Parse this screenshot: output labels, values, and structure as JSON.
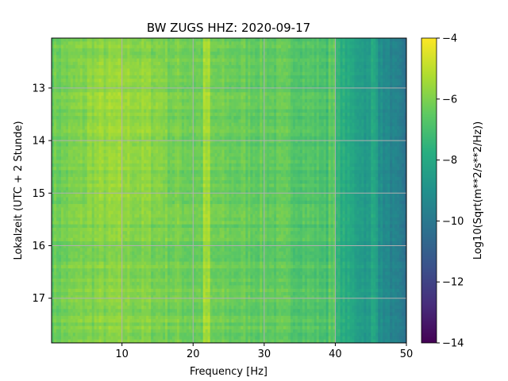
{
  "chart_data": {
    "type": "heatmap",
    "title": "BW ZUGS  HHZ: 2020-09-17",
    "xlabel": "Frequency [Hz]",
    "ylabel": "Lokalzeit (UTC + 2 Stunde)",
    "xlim": [
      0.1,
      50
    ],
    "ylim": [
      12.05,
      17.85
    ],
    "y_inverted": true,
    "grid": true,
    "xticks": [
      10,
      20,
      30,
      40,
      50
    ],
    "yticks": [
      13,
      14,
      15,
      16,
      17
    ],
    "colorbar": {
      "label": "Log10(Sqrt(m**2/s**2/Hz))",
      "colormap": "viridis",
      "vmin": -14,
      "vmax": -4,
      "ticks": [
        -4,
        -6,
        -8,
        -10,
        -12,
        -14
      ]
    },
    "approx_values": {
      "freq_profile_hz": [
        0,
        5,
        10,
        15,
        20,
        25,
        30,
        35,
        38,
        40,
        42,
        45,
        48,
        50
      ],
      "log10_psd_profile": [
        -6.3,
        -5.9,
        -5.8,
        -6.0,
        -6.2,
        -6.3,
        -6.4,
        -6.6,
        -6.8,
        -7.4,
        -8.0,
        -8.7,
        -9.5,
        -10.3
      ],
      "line_peaks_hz": [
        22,
        39.5,
        45.5
      ],
      "noisy_hours": [
        12.1,
        15.4
      ]
    }
  }
}
